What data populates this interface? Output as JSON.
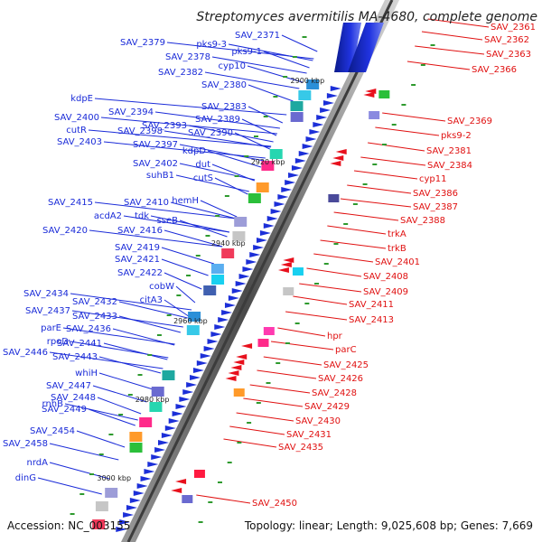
{
  "title": "Streptomyces avermitilis MA-4680, complete genome",
  "accession": "Accession: NC_003155",
  "topology": "Topology: linear; Length: 9,025,608 bp; Genes: 7,669",
  "colors": {
    "left_label": "#1a2bd8",
    "right_label": "#e01010",
    "backbone_dark": "#555555",
    "backbone_light": "#cfcfcf",
    "forward_gene": "#1c2fd8",
    "reverse_gene": "#e8101c",
    "spacer": "#2e9a2e"
  },
  "ticks": [
    "2900 kbp",
    "2920 kbp",
    "2940 kbp",
    "2960 kbp",
    "2980 kbp",
    "3000 kbp"
  ],
  "left_labels": [
    "SAV_2371",
    "SAV_2379",
    "pks9-3",
    "pks9-1",
    "SAV_2378",
    "cyp10",
    "SAV_2382",
    "SAV_2380",
    "kdpE",
    "SAV_2394",
    "SAV_2383",
    "SAV_2400",
    "SAV_2393",
    "SAV_2389",
    "cutR",
    "SAV_2398",
    "SAV_2390",
    "SAV_2403",
    "SAV_2397",
    "kdpD",
    "SAV_2402",
    "dut",
    "suhB1",
    "cutS",
    "hemH",
    "SAV_2415",
    "SAV_2410",
    "tdk",
    "sseB",
    "acdA2",
    "SAV_2420",
    "SAV_2416",
    "SAV_2419",
    "SAV_2421",
    "SAV_2422",
    "cobW",
    "SAV_2434",
    "SAV_2432",
    "citA3",
    "SAV_2437",
    "SAV_2433",
    "parE",
    "SAV_2436",
    "rpoD",
    "SAV_2441",
    "SAV_2446",
    "SAV_2443",
    "whiH",
    "SAV_2447",
    "SAV_2448",
    "rnhB",
    "SAV_2449",
    "SAV_2454",
    "SAV_2458",
    "nrdA",
    "dinG"
  ],
  "right_labels": [
    "SAV_2361",
    "SAV_2362",
    "SAV_2363",
    "SAV_2366",
    "SAV_2369",
    "pks9-2",
    "SAV_2381",
    "SAV_2384",
    "cyp11",
    "SAV_2386",
    "SAV_2387",
    "SAV_2388",
    "trkA",
    "trkB",
    "SAV_2401",
    "SAV_2408",
    "SAV_2409",
    "SAV_2411",
    "SAV_2413",
    "hpr",
    "parC",
    "SAV_2425",
    "SAV_2426",
    "SAV_2428",
    "SAV_2429",
    "SAV_2430",
    "SAV_2431",
    "SAV_2435",
    "SAV_2450"
  ]
}
